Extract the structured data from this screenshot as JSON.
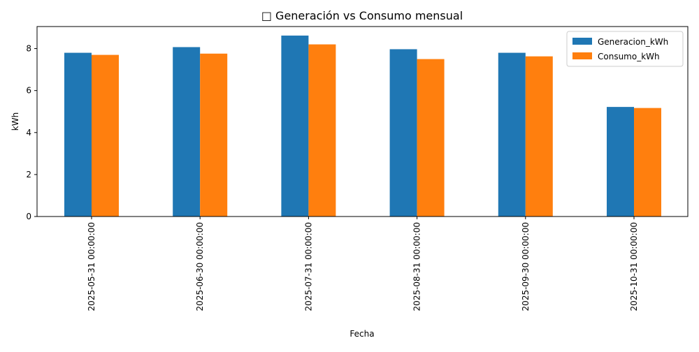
{
  "chart_data": {
    "type": "bar",
    "title": "□ Generación vs Consumo mensual",
    "xlabel": "Fecha",
    "ylabel": "kWh",
    "categories": [
      "2025-05-31 00:00:00",
      "2025-06-30 00:00:00",
      "2025-07-31 00:00:00",
      "2025-08-31 00:00:00",
      "2025-09-30 00:00:00",
      "2025-10-31 00:00:00"
    ],
    "series": [
      {
        "name": "Generacion_kWh",
        "color": "#1f77b4",
        "values": [
          7.8,
          8.07,
          8.62,
          7.97,
          7.8,
          5.22
        ]
      },
      {
        "name": "Consumo_kWh",
        "color": "#ff7f0e",
        "values": [
          7.7,
          7.76,
          8.2,
          7.5,
          7.63,
          5.17
        ]
      }
    ],
    "ylim": [
      0,
      9.05
    ],
    "yticks": [
      0,
      2,
      4,
      6,
      8
    ],
    "grid": false,
    "legend": "top-right"
  }
}
